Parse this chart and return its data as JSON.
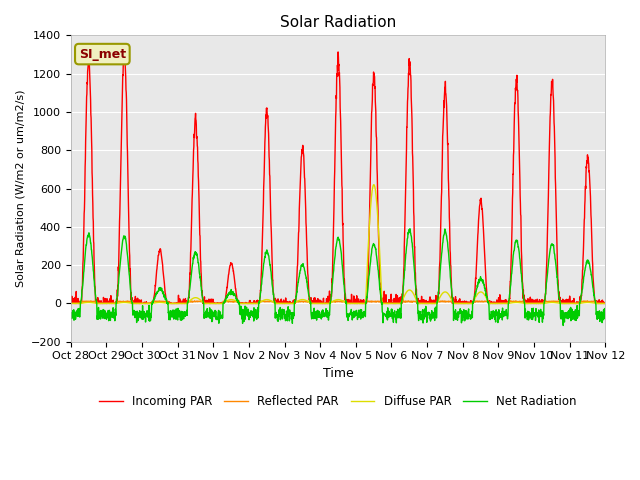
{
  "title": "Solar Radiation",
  "ylabel": "Solar Radiation (W/m2 or um/m2/s)",
  "xlabel": "Time",
  "ylim": [
    -200,
    1400
  ],
  "yticks": [
    -200,
    0,
    200,
    400,
    600,
    800,
    1000,
    1200,
    1400
  ],
  "background_color": "#e8e8e8",
  "figure_color": "#ffffff",
  "annotation_text": "SI_met",
  "annotation_color": "#8B0000",
  "annotation_bg": "#f0f0c0",
  "annotation_border": "#999900",
  "x_tick_labels": [
    "Oct 28",
    "Oct 29",
    "Oct 30",
    "Oct 31",
    "Nov 1",
    "Nov 2",
    "Nov 3",
    "Nov 4",
    "Nov 5",
    "Nov 6",
    "Nov 7",
    "Nov 8",
    "Nov 9",
    "Nov 10",
    "Nov 11",
    "Nov 12"
  ],
  "series": {
    "incoming_par": {
      "label": "Incoming PAR",
      "color": "#ff0000",
      "linewidth": 1.0
    },
    "reflected_par": {
      "label": "Reflected PAR",
      "color": "#ff8800",
      "linewidth": 1.0
    },
    "diffuse_par": {
      "label": "Diffuse PAR",
      "color": "#dddd00",
      "linewidth": 1.0
    },
    "net_radiation": {
      "label": "Net Radiation",
      "color": "#00cc00",
      "linewidth": 1.0
    }
  },
  "n_days": 15,
  "pts_per_day": 144,
  "incoming_peaks": [
    1280,
    1310,
    280,
    960,
    210,
    1000,
    810,
    1280,
    1200,
    1260,
    1130,
    540,
    1170,
    1160,
    770
  ],
  "diffuse_peaks": [
    5,
    5,
    5,
    30,
    20,
    20,
    20,
    20,
    620,
    70,
    60,
    60,
    5,
    5,
    5
  ],
  "net_peaks": [
    360,
    350,
    75,
    265,
    60,
    270,
    200,
    340,
    310,
    380,
    375,
    130,
    330,
    310,
    220
  ],
  "reflected_flat": 10
}
